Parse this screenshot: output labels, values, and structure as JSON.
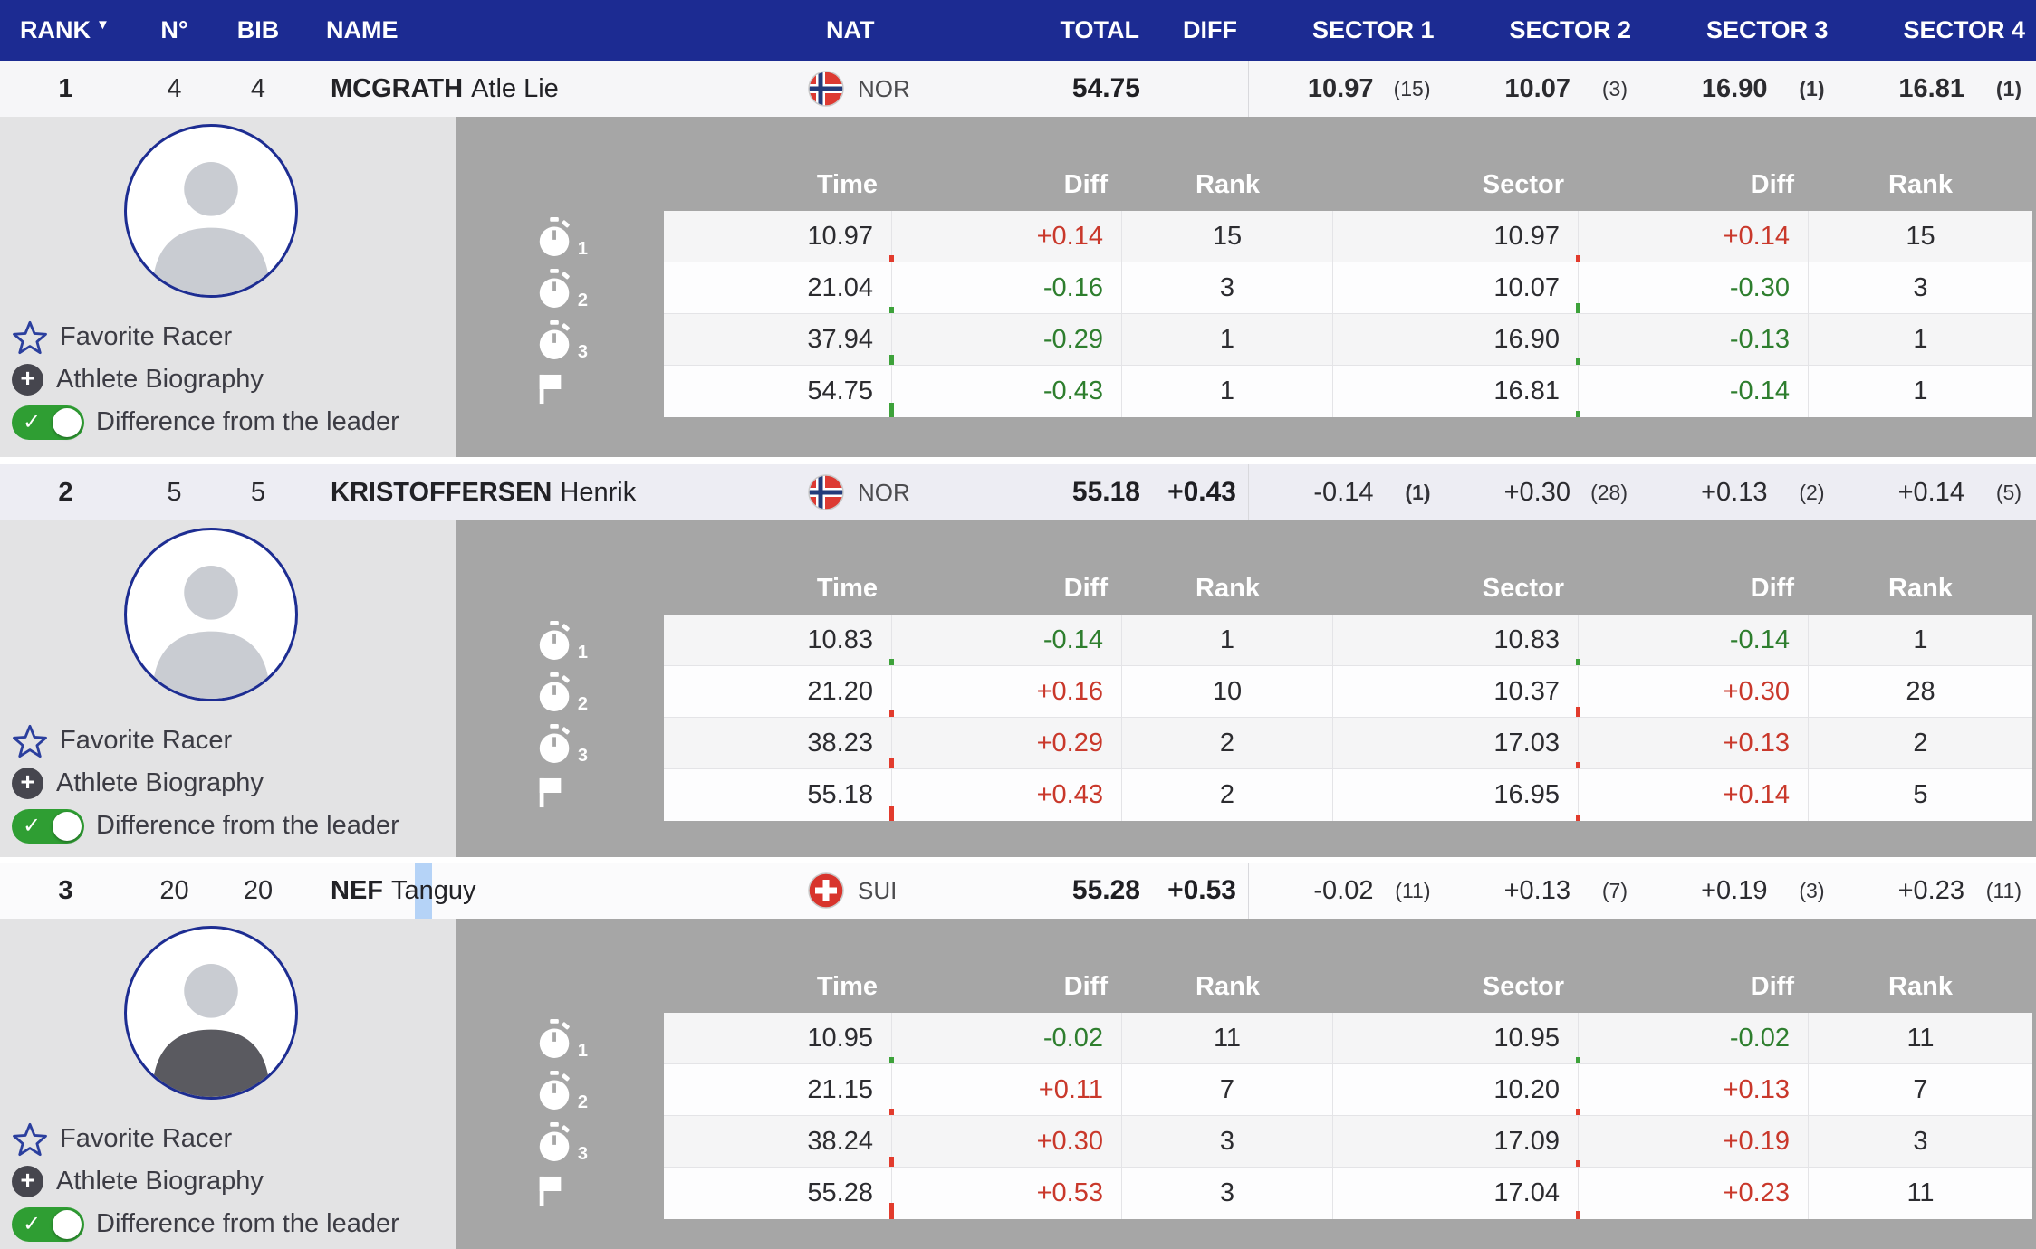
{
  "colors": {
    "header_blue": "#1c2b92",
    "red": "#c9382b",
    "green": "#2e7e2e",
    "toggle_green": "#2f9e33",
    "selection_highlight": "#b5d3f7",
    "detail_gray": "#a6a6a6"
  },
  "header": {
    "rank": "RANK",
    "sort": "▼",
    "n": "N°",
    "bib": "BIB",
    "name": "NAME",
    "nat": "NAT",
    "total": "TOTAL",
    "diff": "DIFF",
    "s1": "SECTOR 1",
    "s2": "SECTOR 2",
    "s3": "SECTOR 3",
    "s4": "SECTOR 4"
  },
  "detail_headers": {
    "time": "Time",
    "diff": "Diff",
    "rank": "Rank",
    "sector": "Sector"
  },
  "sidebar": {
    "favorite": "Favorite Racer",
    "bio": "Athlete Biography",
    "toggle": "Difference from the leader"
  },
  "racers": [
    {
      "rank": "1",
      "n": "4",
      "bib": "4",
      "last": "MCGRATH",
      "first": "Atle Lie",
      "nat": "NOR",
      "total": "54.75",
      "diff": "",
      "sectors": [
        {
          "v": "10.97",
          "r": "(15)"
        },
        {
          "v": "10.07",
          "r": "(3)"
        },
        {
          "v": "16.90",
          "r": "(1)"
        },
        {
          "v": "16.81",
          "r": "(1)"
        }
      ],
      "rows": [
        {
          "label": "1",
          "time": "10.97",
          "tdiff": "+0.14",
          "trank": "15",
          "sector": "10.97",
          "sdiff": "+0.14",
          "srank": "15"
        },
        {
          "label": "2",
          "time": "21.04",
          "tdiff": "-0.16",
          "trank": "3",
          "sector": "10.07",
          "sdiff": "-0.30",
          "srank": "3"
        },
        {
          "label": "3",
          "time": "37.94",
          "tdiff": "-0.29",
          "trank": "1",
          "sector": "16.90",
          "sdiff": "-0.13",
          "srank": "1"
        },
        {
          "label": "",
          "time": "54.75",
          "tdiff": "-0.43",
          "trank": "1",
          "sector": "16.81",
          "sdiff": "-0.14",
          "srank": "1"
        }
      ]
    },
    {
      "rank": "2",
      "n": "5",
      "bib": "5",
      "last": "KRISTOFFERSEN",
      "first": "Henrik",
      "nat": "NOR",
      "total": "55.18",
      "diff": "+0.43",
      "sectors": [
        {
          "v": "-0.14",
          "r": "(1)"
        },
        {
          "v": "+0.30",
          "r": "(28)"
        },
        {
          "v": "+0.13",
          "r": "(2)"
        },
        {
          "v": "+0.14",
          "r": "(5)"
        }
      ],
      "rows": [
        {
          "label": "1",
          "time": "10.83",
          "tdiff": "-0.14",
          "trank": "1",
          "sector": "10.83",
          "sdiff": "-0.14",
          "srank": "1"
        },
        {
          "label": "2",
          "time": "21.20",
          "tdiff": "+0.16",
          "trank": "10",
          "sector": "10.37",
          "sdiff": "+0.30",
          "srank": "28"
        },
        {
          "label": "3",
          "time": "38.23",
          "tdiff": "+0.29",
          "trank": "2",
          "sector": "17.03",
          "sdiff": "+0.13",
          "srank": "2"
        },
        {
          "label": "",
          "time": "55.18",
          "tdiff": "+0.43",
          "trank": "2",
          "sector": "16.95",
          "sdiff": "+0.14",
          "srank": "5"
        }
      ]
    },
    {
      "rank": "3",
      "n": "20",
      "bib": "20",
      "last": "NEF",
      "first": "Tanguy",
      "nat": "SUI",
      "total": "55.28",
      "diff": "+0.53",
      "sectors": [
        {
          "v": "-0.02",
          "r": "(11)"
        },
        {
          "v": "+0.13",
          "r": "(7)"
        },
        {
          "v": "+0.19",
          "r": "(3)"
        },
        {
          "v": "+0.23",
          "r": "(11)"
        }
      ],
      "rows": [
        {
          "label": "1",
          "time": "10.95",
          "tdiff": "-0.02",
          "trank": "11",
          "sector": "10.95",
          "sdiff": "-0.02",
          "srank": "11"
        },
        {
          "label": "2",
          "time": "21.15",
          "tdiff": "+0.11",
          "trank": "7",
          "sector": "10.20",
          "sdiff": "+0.13",
          "srank": "7"
        },
        {
          "label": "3",
          "time": "38.24",
          "tdiff": "+0.30",
          "trank": "3",
          "sector": "17.09",
          "sdiff": "+0.19",
          "srank": "3"
        },
        {
          "label": "",
          "time": "55.28",
          "tdiff": "+0.53",
          "trank": "3",
          "sector": "17.04",
          "sdiff": "+0.23",
          "srank": "11"
        }
      ]
    }
  ]
}
